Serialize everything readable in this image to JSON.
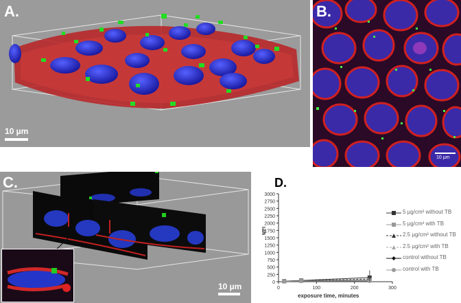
{
  "panel_a": {
    "label": "A.",
    "scalebar": "10 µm"
  },
  "panel_b": {
    "label": "B.",
    "scalebar": "10 µm"
  },
  "panel_c": {
    "label": "C.",
    "scalebar": "10 µm"
  },
  "panel_d": {
    "label": "D.",
    "chart_data": {
      "type": "line",
      "xlabel": "exposure time, minutes",
      "ylabel": "MFI",
      "xlim": [
        0,
        300
      ],
      "ylim": [
        0,
        3000
      ],
      "xticks": [
        0,
        100,
        200,
        300
      ],
      "yticks": [
        0,
        250,
        500,
        750,
        1000,
        1250,
        1500,
        1750,
        2000,
        2250,
        2500,
        2750,
        3000
      ],
      "legend_position": "right",
      "series": [
        {
          "name": "5 µg/cm² without TB",
          "x": [
            15,
            60,
            240
          ],
          "y": [
            20,
            45,
            140
          ],
          "color": "#333333",
          "marker": "square",
          "dash": "solid"
        },
        {
          "name": "5 µg/cm² with TB",
          "x": [
            15,
            60,
            240
          ],
          "y": [
            15,
            40,
            60
          ],
          "color": "#999999",
          "marker": "square",
          "dash": "solid"
        },
        {
          "name": "2.5 µg/cm² without TB",
          "x": [
            15,
            60,
            240
          ],
          "y": [
            15,
            35,
            90
          ],
          "color": "#333333",
          "marker": "triangle",
          "dash": "dashed"
        },
        {
          "name": "2.5 µg/cm² with TB",
          "x": [
            15,
            60,
            240
          ],
          "y": [
            10,
            30,
            50
          ],
          "color": "#aaaaaa",
          "marker": "triangle",
          "dash": "dashed"
        },
        {
          "name": "control without TB",
          "x": [
            15,
            60,
            240
          ],
          "y": [
            10,
            25,
            30
          ],
          "color": "#111111",
          "marker": "diamond",
          "dash": "solid"
        },
        {
          "name": "control with TB",
          "x": [
            15,
            60,
            240
          ],
          "y": [
            8,
            20,
            25
          ],
          "color": "#999999",
          "marker": "circle",
          "dash": "solid"
        }
      ]
    }
  }
}
